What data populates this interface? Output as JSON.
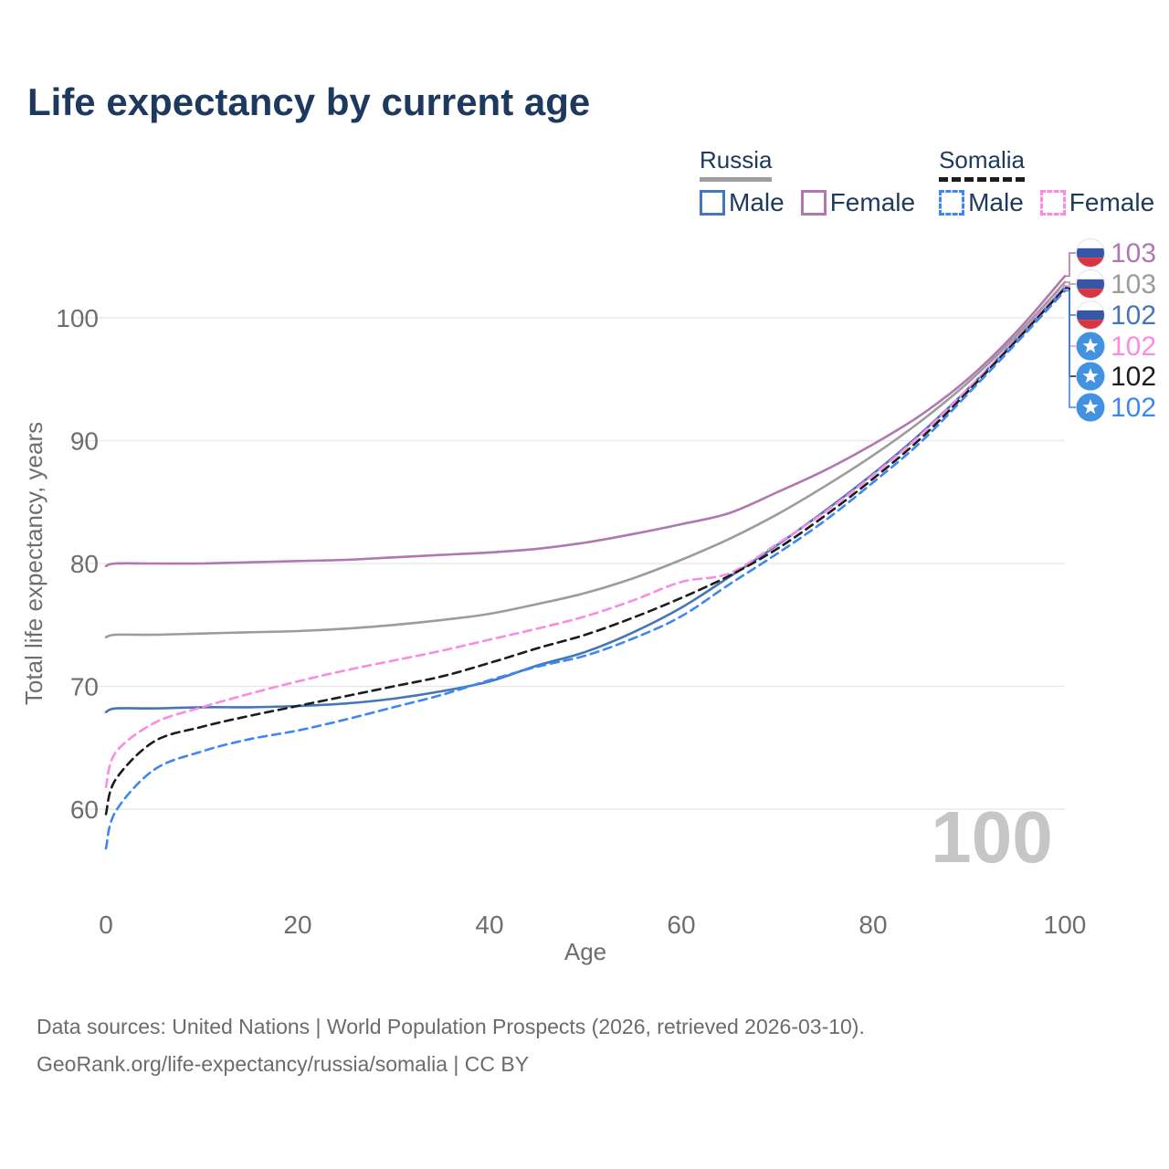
{
  "title": "Life expectancy by current age",
  "legend": {
    "groups": [
      {
        "name": "Russia",
        "line_style": "solid",
        "underline_color": "#9e9e9e",
        "items": [
          {
            "label": "Male",
            "color": "#4576b5"
          },
          {
            "label": "Female",
            "color": "#b077b0"
          }
        ]
      },
      {
        "name": "Somalia",
        "line_style": "dashed",
        "underline_color": "#1c1c1c",
        "items": [
          {
            "label": "Male",
            "color": "#3e87f0"
          },
          {
            "label": "Female",
            "color": "#fa8be1"
          }
        ]
      }
    ]
  },
  "chart_data": {
    "type": "line",
    "title": "Life expectancy by current age",
    "xlabel": "Age",
    "ylabel": "Total life expectancy, years",
    "xlim": [
      0,
      100
    ],
    "ylim": [
      55,
      105
    ],
    "x_ticks": [
      0,
      20,
      40,
      60,
      80,
      100
    ],
    "y_ticks": [
      100,
      90,
      80,
      70,
      60
    ],
    "grid": "horizontal",
    "legend_position": "top-right",
    "hover_age_indicator": "100",
    "ages": [
      0,
      1,
      5,
      10,
      15,
      20,
      25,
      30,
      35,
      40,
      45,
      50,
      55,
      60,
      65,
      70,
      75,
      80,
      85,
      90,
      95,
      100
    ],
    "series": [
      {
        "name": "Russia Female",
        "country": "Russia",
        "sex": "Female",
        "color": "#b077b0",
        "dash": false,
        "flag_icon": "russia-flag-icon",
        "end_label": "103",
        "values": [
          79.8,
          80.0,
          80.0,
          80.0,
          80.1,
          80.2,
          80.3,
          80.5,
          80.7,
          80.9,
          81.2,
          81.7,
          82.4,
          83.2,
          84.1,
          85.8,
          87.6,
          89.7,
          92.1,
          95.1,
          98.9,
          103.4
        ]
      },
      {
        "name": "Russia Total",
        "country": "Russia",
        "sex": "Both",
        "color": "#9c9c9c",
        "dash": false,
        "flag_icon": "russia-flag-icon",
        "end_label": "103",
        "values": [
          74.0,
          74.2,
          74.2,
          74.3,
          74.4,
          74.5,
          74.7,
          75.0,
          75.4,
          75.9,
          76.7,
          77.6,
          78.8,
          80.3,
          82.0,
          84.0,
          86.3,
          88.8,
          91.6,
          94.8,
          98.6,
          102.9
        ]
      },
      {
        "name": "Russia Male",
        "country": "Russia",
        "sex": "Male",
        "color": "#4576b5",
        "dash": false,
        "flag_icon": "russia-flag-icon",
        "end_label": "102",
        "values": [
          67.9,
          68.2,
          68.2,
          68.3,
          68.3,
          68.4,
          68.6,
          69.0,
          69.6,
          70.4,
          71.7,
          72.8,
          74.4,
          76.4,
          78.9,
          81.5,
          84.3,
          87.3,
          90.6,
          94.3,
          98.3,
          102.5
        ]
      },
      {
        "name": "Somalia Female",
        "country": "Somalia",
        "sex": "Female",
        "color": "#fa8be1",
        "dash": true,
        "flag_icon": "somalia-flag-icon",
        "end_label": "102",
        "values": [
          61.8,
          64.6,
          67.0,
          68.3,
          69.4,
          70.4,
          71.3,
          72.1,
          72.9,
          73.8,
          74.7,
          75.7,
          77.0,
          78.5,
          79.2,
          81.6,
          84.2,
          87.2,
          90.5,
          94.3,
          98.3,
          102.6
        ]
      },
      {
        "name": "Somalia Total",
        "country": "Somalia",
        "sex": "Both",
        "color": "#1c1c1c",
        "dash": true,
        "flag_icon": "somalia-flag-icon",
        "end_label": "102",
        "values": [
          59.6,
          62.4,
          65.5,
          66.7,
          67.6,
          68.4,
          69.2,
          70.0,
          70.8,
          71.9,
          73.1,
          74.2,
          75.6,
          77.2,
          79.0,
          81.2,
          83.9,
          86.9,
          90.2,
          94.1,
          98.2,
          102.4
        ]
      },
      {
        "name": "Somalia Male",
        "country": "Somalia",
        "sex": "Male",
        "color": "#3e87f0",
        "dash": true,
        "flag_icon": "somalia-flag-icon",
        "end_label": "102",
        "values": [
          56.8,
          59.8,
          63.2,
          64.7,
          65.7,
          66.4,
          67.3,
          68.3,
          69.3,
          70.5,
          71.6,
          72.5,
          73.9,
          75.7,
          78.3,
          80.8,
          83.5,
          86.6,
          89.9,
          93.9,
          98.0,
          102.2
        ]
      }
    ],
    "colors": {
      "grid": "#e9e9e9",
      "tick_text": "#6e6e6e",
      "watermark": "#c6c6c6",
      "russia_flag_blue": "#3757a6",
      "russia_flag_red": "#d93440",
      "somalia_flag_blue": "#4292e0"
    }
  },
  "footer": {
    "line1": "Data sources: United Nations | World Population Prospects (2026, retrieved 2026-03-10).",
    "line2": "GeoRank.org/life-expectancy/russia/somalia | CC BY"
  }
}
